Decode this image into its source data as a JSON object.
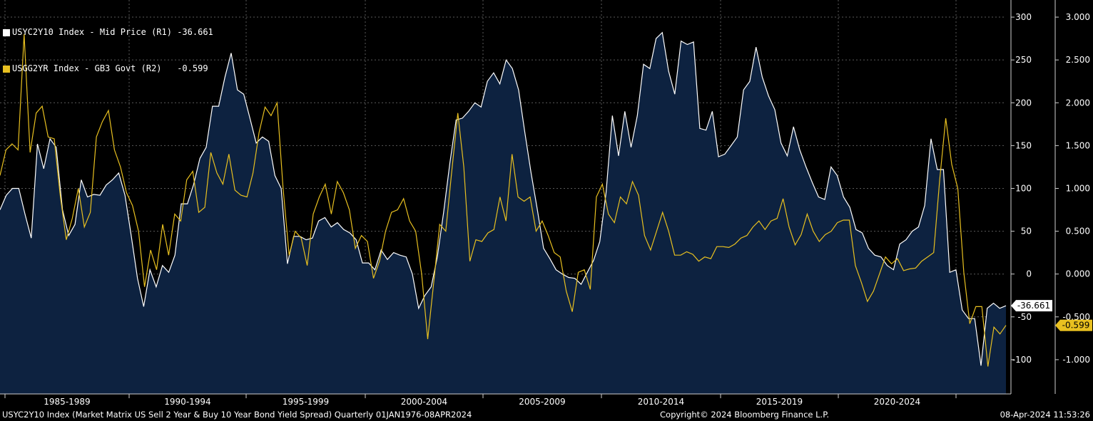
{
  "legend": [
    {
      "name": "USYC2Y10 Index - Mid Price (R1)",
      "last": "-36.661",
      "color": "#ffffff"
    },
    {
      "name": "USGG2YR Index - GB3 Govt (R2)",
      "last": "-0.599",
      "color": "#e8c020"
    }
  ],
  "footer": {
    "left": "USYC2Y10 Index (Market Matrix US Sell 2 Year & Buy 10 Year Bond Yield Spread)  Quarterly 01JAN1976-08APR2024",
    "copyright": "Copyright© 2024 Bloomberg Finance L.P.",
    "timestamp": "08-Apr-2024 11:53:26"
  },
  "chart_data": {
    "type": "area",
    "x_tick_labels": [
      "1985-1989",
      "1990-1994",
      "1995-1999",
      "2000-2004",
      "2005-2009",
      "2010-2014",
      "2015-2019",
      "2020-2024"
    ],
    "axes": {
      "r1": {
        "label": "R1",
        "ylim": [
          -140,
          320
        ],
        "ticks": [
          "300",
          "250",
          "200",
          "150",
          "100",
          "50",
          "0",
          "-50",
          "-100"
        ]
      },
      "r2": {
        "label": "R2",
        "ylim": [
          -1.4,
          3.2
        ],
        "ticks": [
          "3.000",
          "2.500",
          "2.000",
          "1.500",
          "1.000",
          "0.500",
          "0.000",
          "-0.500",
          "-1.000"
        ]
      }
    },
    "grid": true,
    "last_labels": {
      "r1": "-36.661",
      "r2": "-0.599"
    },
    "series": [
      {
        "name": "USYC2Y10 Index - Mid Price (R1)",
        "axis": "r1",
        "style": "area",
        "color": "#ffffff",
        "fill": "#0d2240",
        "x_range": [
          "1983Q2",
          "2024Q2"
        ],
        "values": [
          75,
          92,
          100,
          100,
          70,
          42,
          152,
          123,
          158,
          148,
          75,
          45,
          58,
          110,
          90,
          93,
          92,
          104,
          110,
          118,
          92,
          45,
          -5,
          -38,
          5,
          -15,
          10,
          2,
          22,
          82,
          82,
          105,
          135,
          148,
          196,
          196,
          230,
          258,
          215,
          210,
          182,
          153,
          160,
          155,
          115,
          100,
          12,
          44,
          44,
          40,
          42,
          62,
          66,
          55,
          60,
          52,
          48,
          40,
          13,
          13,
          5,
          28,
          17,
          25,
          22,
          20,
          0,
          -40,
          -25,
          -15,
          20,
          72,
          130,
          180,
          182,
          190,
          200,
          195,
          225,
          235,
          222,
          250,
          240,
          215,
          165,
          118,
          75,
          30,
          18,
          5,
          0,
          -4,
          -5,
          -12,
          2,
          16,
          38,
          95,
          185,
          138,
          190,
          148,
          185,
          245,
          240,
          275,
          282,
          237,
          210,
          272,
          268,
          271,
          170,
          168,
          190,
          137,
          140,
          150,
          160,
          215,
          225,
          265,
          230,
          208,
          192,
          153,
          138,
          172,
          145,
          125,
          107,
          90,
          87,
          125,
          115,
          90,
          78,
          52,
          48,
          30,
          22,
          20,
          10,
          5,
          35,
          40,
          50,
          55,
          80,
          158,
          122,
          122,
          2,
          5,
          -42,
          -52,
          -52,
          -107,
          -40,
          -34,
          -40,
          -37
        ]
      },
      {
        "name": "USGG2YR Index - GB3 Govt (R2)",
        "axis": "r2",
        "style": "line",
        "color": "#e8c020",
        "x_range": [
          "1983Q2",
          "2024Q2"
        ],
        "values": [
          1.15,
          1.45,
          1.52,
          1.45,
          2.8,
          1.42,
          1.88,
          1.96,
          1.6,
          1.58,
          0.92,
          0.4,
          0.65,
          1.0,
          0.55,
          0.72,
          1.6,
          1.78,
          1.91,
          1.45,
          1.25,
          0.95,
          0.8,
          0.5,
          -0.15,
          0.28,
          0.05,
          0.58,
          0.22,
          0.7,
          0.62,
          1.1,
          1.2,
          0.72,
          0.78,
          1.42,
          1.18,
          1.05,
          1.4,
          0.98,
          0.92,
          0.9,
          1.18,
          1.65,
          1.95,
          1.85,
          2.0,
          1.0,
          0.22,
          0.5,
          0.42,
          0.1,
          0.7,
          0.9,
          1.05,
          0.7,
          1.08,
          0.95,
          0.75,
          0.3,
          0.45,
          0.38,
          -0.05,
          0.15,
          0.5,
          0.72,
          0.75,
          0.88,
          0.62,
          0.5,
          0.0,
          -0.76,
          -0.1,
          0.58,
          0.5,
          1.2,
          1.88,
          1.25,
          0.15,
          0.4,
          0.38,
          0.48,
          0.52,
          0.9,
          0.62,
          1.4,
          0.9,
          0.85,
          0.9,
          0.5,
          0.62,
          0.45,
          0.25,
          0.2,
          -0.2,
          -0.44,
          0.02,
          0.05,
          -0.18,
          0.9,
          1.05,
          0.7,
          0.6,
          0.9,
          0.82,
          1.08,
          0.92,
          0.45,
          0.28,
          0.5,
          0.72,
          0.5,
          0.22,
          0.22,
          0.26,
          0.23,
          0.15,
          0.2,
          0.18,
          0.32,
          0.32,
          0.31,
          0.35,
          0.42,
          0.45,
          0.55,
          0.62,
          0.52,
          0.62,
          0.65,
          0.88,
          0.55,
          0.34,
          0.46,
          0.7,
          0.5,
          0.38,
          0.46,
          0.5,
          0.6,
          0.63,
          0.63,
          0.1,
          -0.1,
          -0.32,
          -0.2,
          0.0,
          0.2,
          0.12,
          0.18,
          0.04,
          0.06,
          0.07,
          0.15,
          0.2,
          0.25,
          1.1,
          1.82,
          1.28,
          1.0,
          0.02,
          -0.58,
          -0.38,
          -0.38,
          -1.08,
          -0.62,
          -0.7,
          -0.599
        ]
      }
    ]
  }
}
